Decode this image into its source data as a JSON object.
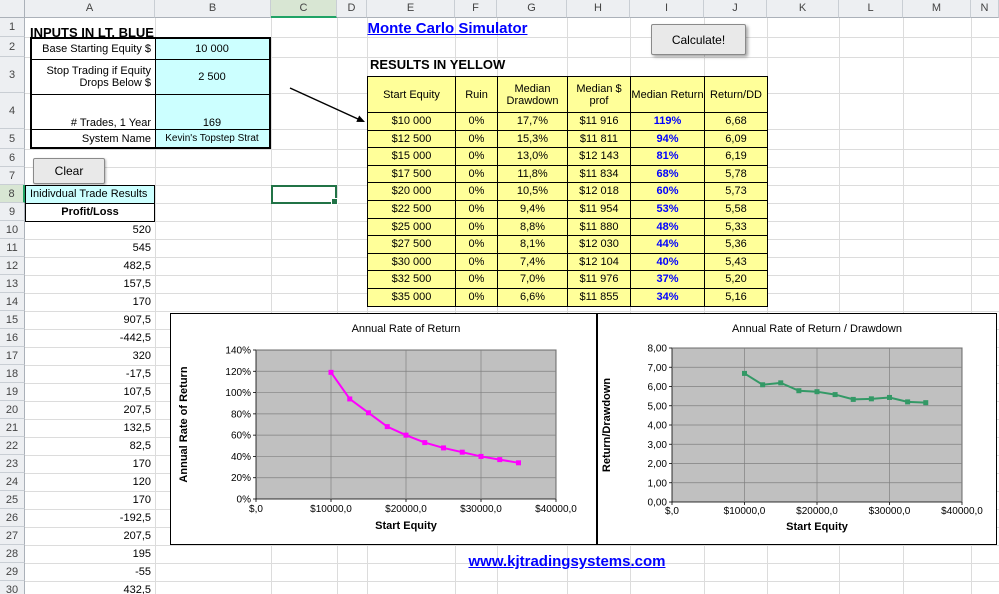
{
  "app": {
    "title": "Monte Carlo Simulator",
    "inputs_header": "INPUTS IN LT. BLUE",
    "results_header": "RESULTS IN YELLOW",
    "calculate_label": "Calculate!",
    "clear_label": "Clear",
    "link": "www.kjtradingsystems.com"
  },
  "grid": {
    "columns": [
      "A",
      "B",
      "C",
      "D",
      "E",
      "F",
      "G",
      "H",
      "I",
      "J",
      "K",
      "L",
      "M",
      "N"
    ],
    "rows": [
      "1",
      "2",
      "3",
      "4",
      "5",
      "6",
      "7",
      "8",
      "9",
      "10",
      "11",
      "12",
      "13",
      "14",
      "15",
      "16",
      "17",
      "18",
      "19",
      "20",
      "21",
      "22",
      "23",
      "24",
      "25",
      "26",
      "27",
      "28",
      "29",
      "30"
    ],
    "selected_column": "C",
    "selected_row": "8",
    "selected_cell": "C8"
  },
  "inputs": {
    "rows": [
      {
        "label": "Base Starting Equity $",
        "value": "10 000"
      },
      {
        "label": "Stop Trading if Equity Drops Below $",
        "value": "2 500"
      },
      {
        "label": "# Trades, 1 Year",
        "value": "169"
      },
      {
        "label": "System Name",
        "value": "Kevin's Topstep Strat"
      }
    ]
  },
  "trade_results": {
    "header": "Inidivdual Trade Results",
    "column_header": "Profit/Loss",
    "values": [
      "520",
      "545",
      "482,5",
      "157,5",
      "170",
      "907,5",
      "-442,5",
      "320",
      "-17,5",
      "107,5",
      "207,5",
      "132,5",
      "82,5",
      "170",
      "120",
      "170",
      "-192,5",
      "207,5",
      "195",
      "-55",
      "432,5"
    ]
  },
  "results_table": {
    "headers": [
      "Start Equity",
      "Ruin",
      "Median Drawdown",
      "Median $ prof",
      "Median Return",
      "Return/DD"
    ],
    "rows": [
      [
        "$10 000",
        "0%",
        "17,7%",
        "$11 916",
        "119%",
        "6,68"
      ],
      [
        "$12 500",
        "0%",
        "15,3%",
        "$11 811",
        "94%",
        "6,09"
      ],
      [
        "$15 000",
        "0%",
        "13,0%",
        "$12 143",
        "81%",
        "6,19"
      ],
      [
        "$17 500",
        "0%",
        "11,8%",
        "$11 834",
        "68%",
        "5,78"
      ],
      [
        "$20 000",
        "0%",
        "10,5%",
        "$12 018",
        "60%",
        "5,73"
      ],
      [
        "$22 500",
        "0%",
        "9,4%",
        "$11 954",
        "53%",
        "5,58"
      ],
      [
        "$25 000",
        "0%",
        "8,8%",
        "$11 880",
        "48%",
        "5,33"
      ],
      [
        "$27 500",
        "0%",
        "8,1%",
        "$12 030",
        "44%",
        "5,36"
      ],
      [
        "$30 000",
        "0%",
        "7,4%",
        "$12 104",
        "40%",
        "5,43"
      ],
      [
        "$32 500",
        "0%",
        "7,0%",
        "$11 976",
        "37%",
        "5,20"
      ],
      [
        "$35 000",
        "0%",
        "6,6%",
        "$11 855",
        "34%",
        "5,16"
      ]
    ]
  },
  "chart_data": [
    {
      "type": "line",
      "title": "Annual Rate of Return",
      "xlabel": "Start Equity",
      "ylabel": "Annual Rate of Return",
      "x": [
        10000,
        12500,
        15000,
        17500,
        20000,
        22500,
        25000,
        27500,
        30000,
        32500,
        35000
      ],
      "values": [
        119,
        94,
        81,
        68,
        60,
        53,
        48,
        44,
        40,
        37,
        34
      ],
      "xlim": [
        0,
        40000
      ],
      "ylim": [
        0,
        140
      ],
      "xtick_values": [
        0,
        10000,
        20000,
        30000,
        40000
      ],
      "xtick_labels": [
        "$,0",
        "$10000,0",
        "$20000,0",
        "$30000,0",
        "$40000,0"
      ],
      "ytick_values": [
        0,
        20,
        40,
        60,
        80,
        100,
        120,
        140
      ],
      "ytick_labels": [
        "0%",
        "20%",
        "40%",
        "60%",
        "80%",
        "100%",
        "120%",
        "140%"
      ],
      "color": "#FF00FF",
      "plot_bg": "#C0C0C0",
      "grid": true
    },
    {
      "type": "line",
      "title": "Annual Rate of Return / Drawdown",
      "xlabel": "Start Equity",
      "ylabel": "Return/Drawdown",
      "x": [
        10000,
        12500,
        15000,
        17500,
        20000,
        22500,
        25000,
        27500,
        30000,
        32500,
        35000
      ],
      "values": [
        6.68,
        6.09,
        6.19,
        5.78,
        5.73,
        5.58,
        5.33,
        5.36,
        5.43,
        5.2,
        5.16
      ],
      "xlim": [
        0,
        40000
      ],
      "ylim": [
        0,
        8
      ],
      "xtick_values": [
        0,
        10000,
        20000,
        30000,
        40000
      ],
      "xtick_labels": [
        "$,0",
        "$10000,0",
        "$20000,0",
        "$30000,0",
        "$40000,0"
      ],
      "ytick_values": [
        0,
        1,
        2,
        3,
        4,
        5,
        6,
        7,
        8
      ],
      "ytick_labels": [
        "0,00",
        "1,00",
        "2,00",
        "3,00",
        "4,00",
        "5,00",
        "6,00",
        "7,00",
        "8,00"
      ],
      "color": "#339966",
      "plot_bg": "#C0C0C0",
      "grid": true
    }
  ]
}
